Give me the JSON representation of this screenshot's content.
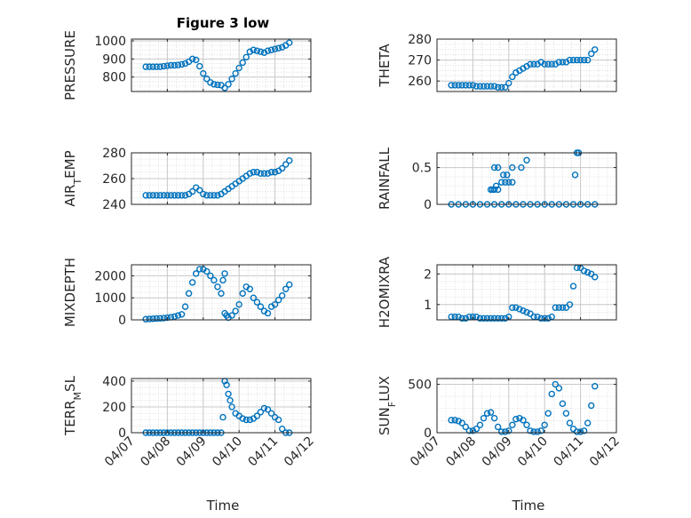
{
  "figure_title": "Figure 3 low",
  "marker_color": "#0072BD",
  "x_tick_labels": [
    "04/07",
    "04/08",
    "04/09",
    "04/10",
    "04/11",
    "04/12"
  ],
  "x_axis_label": "Time",
  "chart_data": [
    {
      "type": "scatter",
      "title": "Figure 3 low",
      "ylabel": "PRESSURE",
      "xlim": [
        "04/07",
        "04/12"
      ],
      "ylim": [
        720,
        1010
      ],
      "yticks": [
        800,
        900,
        1000
      ],
      "grid": true,
      "x": [
        7.4,
        7.5,
        7.6,
        7.7,
        7.8,
        7.9,
        8.0,
        8.1,
        8.2,
        8.3,
        8.4,
        8.5,
        8.6,
        8.7,
        8.8,
        8.9,
        9.0,
        9.1,
        9.2,
        9.3,
        9.4,
        9.5,
        9.6,
        9.7,
        9.8,
        9.9,
        10.0,
        10.1,
        10.2,
        10.3,
        10.4,
        10.5,
        10.6,
        10.7,
        10.8,
        10.9,
        11.0,
        11.1,
        11.2,
        11.3,
        11.4
      ],
      "y": [
        857,
        857,
        857,
        857,
        857,
        860,
        862,
        865,
        865,
        867,
        870,
        875,
        885,
        900,
        895,
        860,
        820,
        790,
        770,
        760,
        757,
        755,
        740,
        760,
        790,
        820,
        850,
        880,
        910,
        940,
        950,
        945,
        940,
        935,
        945,
        950,
        955,
        960,
        965,
        975,
        990
      ]
    },
    {
      "type": "scatter",
      "ylabel": "THETA",
      "xlim": [
        "04/07",
        "04/12"
      ],
      "ylim": [
        255,
        280
      ],
      "yticks": [
        260,
        270,
        280
      ],
      "grid": true,
      "x": [
        7.4,
        7.5,
        7.6,
        7.7,
        7.8,
        7.9,
        8.0,
        8.1,
        8.2,
        8.3,
        8.4,
        8.5,
        8.6,
        8.7,
        8.8,
        8.9,
        9.0,
        9.1,
        9.2,
        9.3,
        9.4,
        9.5,
        9.6,
        9.7,
        9.8,
        9.9,
        10.0,
        10.1,
        10.2,
        10.3,
        10.4,
        10.5,
        10.6,
        10.7,
        10.8,
        10.9,
        11.0,
        11.1,
        11.2,
        11.3,
        11.4
      ],
      "y": [
        258,
        258,
        258,
        258,
        258,
        258,
        258,
        257.5,
        257.5,
        257.5,
        257.5,
        257.5,
        257.5,
        257,
        257,
        257,
        259,
        262,
        264,
        265,
        266,
        267,
        268,
        268,
        268,
        269,
        268,
        268,
        268,
        268,
        269,
        269,
        269,
        270,
        270,
        270,
        270,
        270,
        270,
        273,
        275
      ]
    },
    {
      "type": "scatter",
      "ylabel": "AIR_TEMP",
      "xlim": [
        "04/07",
        "04/12"
      ],
      "ylim": [
        240,
        280
      ],
      "yticks": [
        240,
        260,
        280
      ],
      "grid": true,
      "x": [
        7.4,
        7.5,
        7.6,
        7.7,
        7.8,
        7.9,
        8.0,
        8.1,
        8.2,
        8.3,
        8.4,
        8.5,
        8.6,
        8.7,
        8.8,
        8.9,
        9.0,
        9.1,
        9.2,
        9.3,
        9.4,
        9.5,
        9.6,
        9.7,
        9.8,
        9.9,
        10.0,
        10.1,
        10.2,
        10.3,
        10.4,
        10.5,
        10.6,
        10.7,
        10.8,
        10.9,
        11.0,
        11.1,
        11.2,
        11.3,
        11.4
      ],
      "y": [
        247,
        247,
        247,
        247,
        247,
        247,
        247,
        247,
        247,
        247,
        247,
        247,
        248,
        250,
        253,
        251,
        248,
        247,
        247,
        247,
        247,
        248,
        250,
        252,
        254,
        256,
        258,
        260,
        262,
        264,
        265,
        265,
        264,
        264,
        264,
        265,
        265,
        266,
        268,
        271,
        274
      ]
    },
    {
      "type": "scatter",
      "ylabel": "RAINFALL",
      "xlim": [
        "04/07",
        "04/12"
      ],
      "ylim": [
        0,
        0.7
      ],
      "yticks": [
        0,
        0.5
      ],
      "grid": true,
      "x": [
        7.4,
        7.6,
        7.8,
        8.0,
        8.2,
        8.4,
        8.6,
        8.8,
        9.0,
        9.2,
        9.4,
        9.6,
        9.8,
        10.0,
        10.2,
        10.4,
        10.6,
        10.8,
        11.0,
        11.2,
        11.4,
        8.5,
        8.55,
        8.6,
        8.65,
        8.7,
        8.6,
        8.7,
        8.8,
        8.9,
        9.0,
        9.1,
        8.95,
        9.1,
        8.85,
        9.35,
        9.5,
        10.9,
        10.95,
        10.85
      ],
      "y": [
        0,
        0,
        0,
        0,
        0,
        0,
        0,
        0,
        0,
        0,
        0,
        0,
        0,
        0,
        0,
        0,
        0,
        0,
        0,
        0,
        0,
        0.2,
        0.2,
        0.2,
        0.25,
        0.2,
        0.5,
        0.5,
        0.3,
        0.3,
        0.3,
        0.3,
        0.4,
        0.5,
        0.4,
        0.5,
        0.6,
        0.7,
        0.7,
        0.4
      ]
    },
    {
      "type": "scatter",
      "ylabel": "MIXDEPTH",
      "xlim": [
        "04/07",
        "04/12"
      ],
      "ylim": [
        0,
        2500
      ],
      "yticks": [
        0,
        1000,
        2000
      ],
      "grid": true,
      "x": [
        7.4,
        7.5,
        7.6,
        7.7,
        7.8,
        7.9,
        8.0,
        8.1,
        8.2,
        8.3,
        8.4,
        8.5,
        8.6,
        8.7,
        8.8,
        8.9,
        9.0,
        9.1,
        9.2,
        9.3,
        9.4,
        9.5,
        9.6,
        9.7,
        9.8,
        9.9,
        10.0,
        10.1,
        10.2,
        10.3,
        10.4,
        10.5,
        10.6,
        10.7,
        10.8,
        10.9,
        11.0,
        11.1,
        11.2,
        11.3,
        11.4,
        9.55,
        9.6,
        9.65
      ],
      "y": [
        30,
        40,
        50,
        60,
        70,
        80,
        100,
        120,
        150,
        200,
        250,
        600,
        1200,
        1700,
        2100,
        2300,
        2300,
        2200,
        2000,
        1800,
        1500,
        1200,
        300,
        100,
        200,
        400,
        700,
        1200,
        1500,
        1400,
        1000,
        800,
        600,
        400,
        300,
        600,
        700,
        900,
        1100,
        1400,
        1600,
        1800,
        2100,
        200
      ]
    },
    {
      "type": "scatter",
      "ylabel": "H2OMIXRA",
      "xlim": [
        "04/07",
        "04/12"
      ],
      "ylim": [
        0.5,
        2.3
      ],
      "yticks": [
        1,
        2
      ],
      "grid": true,
      "x": [
        7.4,
        7.5,
        7.6,
        7.7,
        7.8,
        7.9,
        8.0,
        8.1,
        8.2,
        8.3,
        8.4,
        8.5,
        8.6,
        8.7,
        8.8,
        8.9,
        9.0,
        9.1,
        9.2,
        9.3,
        9.4,
        9.5,
        9.6,
        9.7,
        9.8,
        9.9,
        10.0,
        10.1,
        10.2,
        10.3,
        10.4,
        10.5,
        10.6,
        10.7,
        10.8,
        10.9,
        11.0,
        11.1,
        11.2,
        11.3,
        11.4
      ],
      "y": [
        0.6,
        0.6,
        0.6,
        0.55,
        0.55,
        0.6,
        0.6,
        0.6,
        0.55,
        0.55,
        0.55,
        0.55,
        0.55,
        0.55,
        0.55,
        0.55,
        0.6,
        0.9,
        0.9,
        0.85,
        0.8,
        0.75,
        0.7,
        0.6,
        0.6,
        0.55,
        0.55,
        0.55,
        0.6,
        0.9,
        0.9,
        0.9,
        0.9,
        1.0,
        1.6,
        2.2,
        2.2,
        2.1,
        2.05,
        2.0,
        1.9
      ]
    },
    {
      "type": "scatter",
      "ylabel": "TERR_MSL",
      "xlim": [
        "04/07",
        "04/12"
      ],
      "ylim": [
        0,
        420
      ],
      "yticks": [
        0,
        200,
        400
      ],
      "grid": true,
      "x": [
        7.4,
        7.5,
        7.6,
        7.7,
        7.8,
        7.9,
        8.0,
        8.1,
        8.2,
        8.3,
        8.4,
        8.5,
        8.6,
        8.7,
        8.8,
        8.9,
        9.0,
        9.1,
        9.2,
        9.3,
        9.4,
        9.5,
        9.55,
        9.6,
        9.65,
        9.7,
        9.75,
        9.8,
        9.9,
        10.0,
        10.1,
        10.2,
        10.3,
        10.4,
        10.5,
        10.6,
        10.7,
        10.8,
        10.9,
        11.0,
        11.1,
        11.2,
        11.3,
        11.4
      ],
      "y": [
        0,
        0,
        0,
        0,
        0,
        0,
        0,
        0,
        0,
        0,
        0,
        0,
        0,
        0,
        0,
        0,
        0,
        0,
        0,
        0,
        0,
        0,
        120,
        400,
        370,
        300,
        250,
        200,
        150,
        130,
        110,
        100,
        100,
        110,
        130,
        160,
        190,
        180,
        150,
        120,
        100,
        30,
        0,
        0
      ]
    },
    {
      "type": "scatter",
      "ylabel": "SUN_FLUX",
      "xlim": [
        "04/07",
        "04/12"
      ],
      "ylim": [
        0,
        560
      ],
      "yticks": [
        0,
        500
      ],
      "grid": true,
      "x": [
        7.4,
        7.5,
        7.6,
        7.7,
        7.8,
        7.9,
        8.0,
        8.1,
        8.2,
        8.3,
        8.4,
        8.5,
        8.6,
        8.7,
        8.8,
        8.9,
        9.0,
        9.1,
        9.2,
        9.3,
        9.4,
        9.5,
        9.6,
        9.7,
        9.8,
        9.9,
        10.0,
        10.1,
        10.2,
        10.3,
        10.4,
        10.5,
        10.6,
        10.7,
        10.8,
        10.9,
        11.0,
        11.1,
        11.2,
        11.3,
        11.4
      ],
      "y": [
        130,
        130,
        120,
        100,
        60,
        20,
        20,
        40,
        80,
        150,
        200,
        210,
        150,
        60,
        10,
        10,
        20,
        80,
        140,
        150,
        130,
        80,
        20,
        10,
        10,
        20,
        80,
        200,
        400,
        500,
        460,
        300,
        200,
        100,
        40,
        10,
        10,
        20,
        100,
        280,
        480
      ]
    }
  ]
}
